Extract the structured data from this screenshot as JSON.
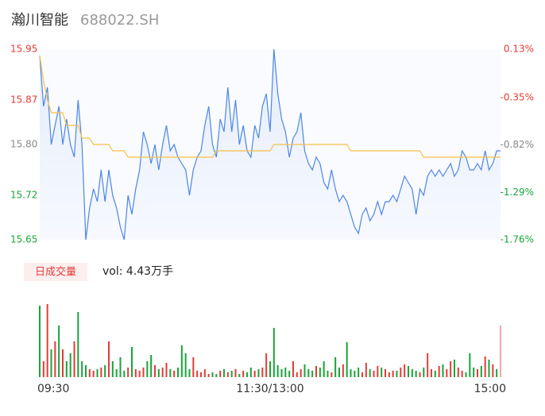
{
  "chart_data": {
    "type": "intraday",
    "title": "瀚川智能",
    "subtitle": "688022.SH",
    "xlim": [
      0,
      240
    ],
    "xticks": [
      {
        "value": 0,
        "label": "09:30"
      },
      {
        "value": 120,
        "label": "11:30/13:00"
      },
      {
        "value": 240,
        "label": "15:00"
      }
    ],
    "ylim": [
      15.65,
      15.95
    ],
    "yticks": [
      {
        "value": 15.65,
        "label": "15.65"
      },
      {
        "value": 15.72,
        "label": "15.72"
      },
      {
        "value": 15.8,
        "label": "15.80"
      },
      {
        "value": 15.87,
        "label": "15.87"
      },
      15.95
    ],
    "ytick_colors": [
      "#1aa33b",
      "#1aa33b",
      "#888888",
      "#e23c39",
      "#e23c39"
    ],
    "y2lim": [
      -1.76,
      0.13
    ],
    "y2ticks": [
      {
        "value": -1.76,
        "label": "-1.76%"
      },
      {
        "value": -1.29,
        "label": "-1.29%"
      },
      {
        "value": -0.82,
        "label": "-0.82%"
      },
      {
        "value": -0.35,
        "label": "-0.35%"
      },
      {
        "value": 0.13,
        "label": "0.13%"
      }
    ],
    "x": [
      0,
      2,
      4,
      6,
      8,
      10,
      12,
      14,
      16,
      18,
      20,
      22,
      24,
      26,
      28,
      30,
      32,
      34,
      36,
      38,
      40,
      42,
      44,
      46,
      48,
      50,
      52,
      54,
      56,
      58,
      60,
      62,
      64,
      66,
      68,
      70,
      72,
      74,
      76,
      78,
      80,
      82,
      84,
      86,
      88,
      90,
      92,
      94,
      96,
      98,
      100,
      102,
      104,
      106,
      108,
      110,
      112,
      114,
      116,
      118,
      120,
      122,
      124,
      126,
      128,
      130,
      132,
      134,
      136,
      138,
      140,
      142,
      144,
      146,
      148,
      150,
      152,
      154,
      156,
      158,
      160,
      162,
      164,
      166,
      168,
      170,
      172,
      174,
      176,
      178,
      180,
      182,
      184,
      186,
      188,
      190,
      192,
      194,
      196,
      198,
      200,
      202,
      204,
      206,
      208,
      210,
      212,
      214,
      216,
      218,
      220,
      222,
      224,
      226,
      228,
      230,
      232,
      234,
      236,
      238,
      240
    ],
    "series": [
      {
        "name": "price",
        "color": "#4a86e8",
        "values": [
          15.94,
          15.86,
          15.89,
          15.8,
          15.83,
          15.86,
          15.8,
          15.84,
          15.8,
          15.78,
          15.87,
          15.8,
          15.65,
          15.7,
          15.73,
          15.71,
          15.76,
          15.71,
          15.76,
          15.72,
          15.7,
          15.67,
          15.65,
          15.72,
          15.69,
          15.73,
          15.76,
          15.82,
          15.8,
          15.77,
          15.8,
          15.76,
          15.8,
          15.83,
          15.79,
          15.8,
          15.78,
          15.77,
          15.76,
          15.72,
          15.76,
          15.78,
          15.79,
          15.83,
          15.86,
          15.8,
          15.78,
          15.84,
          15.82,
          15.89,
          15.82,
          15.87,
          15.8,
          15.83,
          15.79,
          15.78,
          15.83,
          15.81,
          15.86,
          15.88,
          15.82,
          15.95,
          15.88,
          15.84,
          15.82,
          15.78,
          15.81,
          15.82,
          15.85,
          15.79,
          15.77,
          15.76,
          15.78,
          15.77,
          15.74,
          15.73,
          15.76,
          15.73,
          15.71,
          15.72,
          15.71,
          15.69,
          15.67,
          15.66,
          15.69,
          15.7,
          15.68,
          15.69,
          15.71,
          15.69,
          15.71,
          15.71,
          15.72,
          15.71,
          15.73,
          15.75,
          15.74,
          15.73,
          15.69,
          15.73,
          15.72,
          15.75,
          15.76,
          15.75,
          15.76,
          15.75,
          15.76,
          15.77,
          15.75,
          15.76,
          15.79,
          15.78,
          15.76,
          15.76,
          15.77,
          15.76,
          15.79,
          15.76,
          15.77,
          15.79,
          15.79
        ]
      },
      {
        "name": "average",
        "color": "#f5c04a",
        "values": [
          15.94,
          15.9,
          15.87,
          15.85,
          15.85,
          15.85,
          15.85,
          15.83,
          15.83,
          15.83,
          15.83,
          15.81,
          15.81,
          15.81,
          15.8,
          15.8,
          15.8,
          15.8,
          15.8,
          15.79,
          15.79,
          15.79,
          15.79,
          15.78,
          15.78,
          15.78,
          15.78,
          15.78,
          15.78,
          15.78,
          15.78,
          15.78,
          15.78,
          15.78,
          15.78,
          15.78,
          15.78,
          15.78,
          15.78,
          15.78,
          15.78,
          15.78,
          15.78,
          15.78,
          15.78,
          15.78,
          15.79,
          15.79,
          15.79,
          15.79,
          15.79,
          15.79,
          15.79,
          15.79,
          15.79,
          15.79,
          15.79,
          15.79,
          15.79,
          15.79,
          15.79,
          15.8,
          15.8,
          15.8,
          15.8,
          15.8,
          15.8,
          15.8,
          15.8,
          15.8,
          15.8,
          15.8,
          15.8,
          15.8,
          15.8,
          15.8,
          15.8,
          15.8,
          15.8,
          15.8,
          15.8,
          15.79,
          15.79,
          15.79,
          15.79,
          15.79,
          15.79,
          15.79,
          15.79,
          15.79,
          15.79,
          15.79,
          15.79,
          15.79,
          15.79,
          15.79,
          15.79,
          15.79,
          15.79,
          15.79,
          15.78,
          15.78,
          15.78,
          15.78,
          15.78,
          15.78,
          15.78,
          15.78,
          15.78,
          15.78,
          15.78,
          15.78,
          15.78,
          15.78,
          15.78,
          15.78,
          15.78,
          15.78,
          15.78,
          15.78,
          15.78
        ]
      }
    ],
    "volume_button": "日成交量",
    "volume_label": "vol: 4.43万手",
    "vlim": [
      0,
      2500
    ],
    "volume": [
      2250,
      500,
      2300,
      875,
      1125,
      1625,
      875,
      500,
      750,
      1125,
      2050,
      500,
      375,
      250,
      200,
      250,
      300,
      375,
      1125,
      500,
      250,
      625,
      200,
      300,
      950,
      250,
      200,
      300,
      500,
      700,
      375,
      250,
      300,
      450,
      250,
      200,
      300,
      1000,
      750,
      250,
      625,
      200,
      150,
      250,
      100,
      150,
      100,
      200,
      250,
      150,
      200,
      250,
      100,
      200,
      150,
      300,
      200,
      250,
      300,
      750,
      500,
      1550,
      375,
      250,
      300,
      200,
      500,
      150,
      250,
      400,
      250,
      200,
      350,
      300,
      500,
      200,
      150,
      625,
      300,
      400,
      1100,
      250,
      200,
      300,
      150,
      450,
      250,
      200,
      350,
      300,
      250,
      150,
      200,
      200,
      300,
      400,
      350,
      250,
      200,
      150,
      300,
      750,
      250,
      200,
      350,
      400,
      250,
      500,
      550,
      300,
      200,
      150,
      750,
      300,
      250,
      350,
      650,
      550,
      400,
      250,
      1625
    ],
    "volume_colors": [
      "#1aa33b",
      "#e23c39",
      "#e23c39",
      "#1aa33b",
      "#e23c39",
      "#1aa33b",
      "#e23c39",
      "#1aa33b",
      "#1aa33b",
      "#e23c39",
      "#1aa33b",
      "#1aa33b",
      "#1aa33b",
      "#e23c39",
      "#e23c39",
      "#1aa33b",
      "#e23c39",
      "#1aa33b",
      "#e23c39",
      "#1aa33b",
      "#1aa33b",
      "#1aa33b",
      "#1aa33b",
      "#e23c39",
      "#1aa33b",
      "#e23c39",
      "#e23c39",
      "#e23c39",
      "#1aa33b",
      "#1aa33b",
      "#e23c39",
      "#1aa33b",
      "#e23c39",
      "#e23c39",
      "#1aa33b",
      "#e23c39",
      "#1aa33b",
      "#1aa33b",
      "#1aa33b",
      "#1aa33b",
      "#e23c39",
      "#e23c39",
      "#e23c39",
      "#e23c39",
      "#e23c39",
      "#1aa33b",
      "#1aa33b",
      "#e23c39",
      "#1aa33b",
      "#e23c39",
      "#1aa33b",
      "#e23c39",
      "#1aa33b",
      "#e23c39",
      "#1aa33b",
      "#1aa33b",
      "#e23c39",
      "#1aa33b",
      "#e23c39",
      "#e23c39",
      "#1aa33b",
      "#1aa33b",
      "#1aa33b",
      "#1aa33b",
      "#1aa33b",
      "#1aa33b",
      "#e23c39",
      "#e23c39",
      "#e23c39",
      "#1aa33b",
      "#1aa33b",
      "#1aa33b",
      "#e23c39",
      "#1aa33b",
      "#1aa33b",
      "#1aa33b",
      "#e23c39",
      "#1aa33b",
      "#1aa33b",
      "#e23c39",
      "#1aa33b",
      "#1aa33b",
      "#1aa33b",
      "#1aa33b",
      "#e23c39",
      "#e23c39",
      "#1aa33b",
      "#e23c39",
      "#e23c39",
      "#1aa33b",
      "#e23c39",
      "#e23c39",
      "#e23c39",
      "#1aa33b",
      "#e23c39",
      "#e23c39",
      "#1aa33b",
      "#1aa33b",
      "#1aa33b",
      "#e23c39",
      "#1aa33b",
      "#e23c39",
      "#e23c39",
      "#1aa33b",
      "#e23c39",
      "#1aa33b",
      "#e23c39",
      "#e23c39",
      "#1aa33b",
      "#e23c39",
      "#e23c39",
      "#1aa33b",
      "#1aa33b",
      "#1aa33b",
      "#e23c39",
      "#1aa33b",
      "#e23c39",
      "#1aa33b",
      "#e23c39",
      "#1aa33b",
      "#f4a6a6"
    ]
  }
}
